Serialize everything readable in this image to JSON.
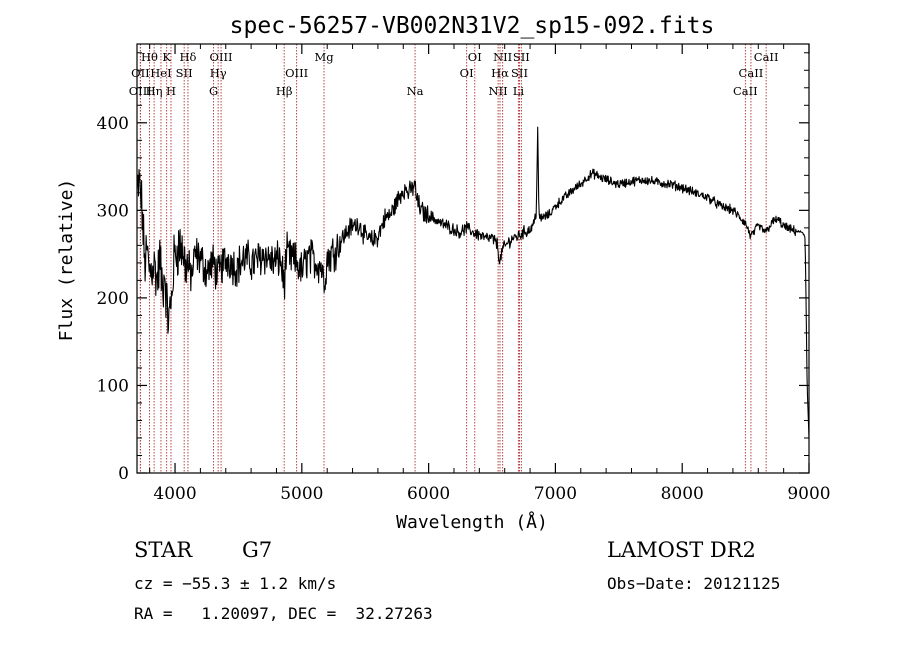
{
  "chart_data": {
    "type": "line",
    "title": "spec-56257-VB002N31V2_sp15-092.fits",
    "xlabel": "Wavelength (Å)",
    "ylabel": "Flux (relative)",
    "xlim": [
      3700,
      9000
    ],
    "ylim": [
      0,
      490
    ],
    "xticks": [
      4000,
      5000,
      6000,
      7000,
      8000,
      9000
    ],
    "yticks": [
      0,
      100,
      200,
      300,
      400
    ],
    "grid": false,
    "line_color": "#000000",
    "marker_color": "#b03030",
    "series": [
      {
        "x": [
          3700,
          3720,
          3740,
          3760,
          3780,
          3800,
          3830,
          3860,
          3880,
          3900,
          3920,
          3935,
          3950,
          3968,
          3990,
          4010,
          4050,
          4080,
          4100,
          4130,
          4160,
          4200,
          4250,
          4300,
          4340,
          4380,
          4420,
          4480,
          4550,
          4620,
          4700,
          4780,
          4830,
          4861,
          4880,
          4920,
          4960,
          5000,
          5050,
          5100,
          5150,
          5175,
          5200,
          5260,
          5320,
          5380,
          5450,
          5500,
          5550,
          5600,
          5650,
          5700,
          5750,
          5800,
          5850,
          5890,
          5910,
          5940,
          5980,
          6030,
          6100,
          6150,
          6200,
          6250,
          6300,
          6350,
          6400,
          6450,
          6500,
          6540,
          6563,
          6580,
          6620,
          6660,
          6700,
          6750,
          6800,
          6830,
          6850,
          6860,
          6870,
          6900,
          6950,
          7000,
          7050,
          7100,
          7150,
          7200,
          7250,
          7300,
          7350,
          7400,
          7450,
          7500,
          7600,
          7700,
          7800,
          7900,
          8000,
          8100,
          8200,
          8300,
          8400,
          8500,
          8542,
          8600,
          8662,
          8700,
          8750,
          8800,
          8850,
          8900,
          8950,
          8970,
          8985,
          9000
        ],
        "y": [
          320,
          330,
          300,
          240,
          250,
          230,
          240,
          220,
          245,
          210,
          230,
          190,
          175,
          190,
          240,
          255,
          260,
          240,
          235,
          225,
          250,
          245,
          230,
          240,
          225,
          240,
          245,
          235,
          245,
          240,
          250,
          240,
          245,
          215,
          250,
          245,
          240,
          230,
          248,
          242,
          238,
          220,
          245,
          255,
          268,
          280,
          285,
          270,
          265,
          270,
          290,
          295,
          310,
          325,
          320,
          330,
          310,
          300,
          295,
          292,
          285,
          282,
          278,
          275,
          280,
          275,
          272,
          268,
          268,
          262,
          240,
          255,
          262,
          268,
          270,
          275,
          278,
          285,
          300,
          395,
          290,
          292,
          295,
          305,
          312,
          318,
          325,
          330,
          338,
          342,
          338,
          335,
          332,
          330,
          333,
          335,
          332,
          330,
          326,
          320,
          315,
          305,
          300,
          285,
          270,
          282,
          275,
          285,
          290,
          282,
          278,
          276,
          275,
          268,
          100,
          40
        ]
      }
    ],
    "spectral_lines": [
      {
        "label": "Hθ",
        "wavelength": 3798,
        "row": 1
      },
      {
        "label": "K",
        "wavelength": 3934,
        "row": 1
      },
      {
        "label": "Hδ",
        "wavelength": 4102,
        "row": 1
      },
      {
        "label": "OIII",
        "wavelength": 4363,
        "row": 1
      },
      {
        "label": "Mg",
        "wavelength": 5175,
        "row": 1
      },
      {
        "label": "OI",
        "wavelength": 6364,
        "row": 1
      },
      {
        "label": "NII",
        "wavelength": 6584,
        "row": 1
      },
      {
        "label": "SII",
        "wavelength": 6731,
        "row": 1
      },
      {
        "label": "CaII",
        "wavelength": 8662,
        "row": 1
      },
      {
        "label": "OII",
        "wavelength": 3727,
        "row": 2
      },
      {
        "label": "HeI",
        "wavelength": 3889,
        "row": 2
      },
      {
        "label": "SII",
        "wavelength": 4072,
        "row": 2
      },
      {
        "label": "Hγ",
        "wavelength": 4340,
        "row": 2
      },
      {
        "label": "OIII",
        "wavelength": 4959,
        "row": 2
      },
      {
        "label": "OI",
        "wavelength": 6300,
        "row": 2
      },
      {
        "label": "Hα",
        "wavelength": 6563,
        "row": 2
      },
      {
        "label": "SII",
        "wavelength": 6717,
        "row": 2
      },
      {
        "label": "CaII",
        "wavelength": 8542,
        "row": 2
      },
      {
        "label": "OIII",
        "wavelength": 3726,
        "row": 3
      },
      {
        "label": "Hη",
        "wavelength": 3835,
        "row": 3
      },
      {
        "label": "H",
        "wavelength": 3968,
        "row": 3
      },
      {
        "label": "G",
        "wavelength": 4304,
        "row": 3
      },
      {
        "label": "Hβ",
        "wavelength": 4861,
        "row": 3
      },
      {
        "label": "Na",
        "wavelength": 5893,
        "row": 3
      },
      {
        "label": "NII",
        "wavelength": 6548,
        "row": 3
      },
      {
        "label": "Li",
        "wavelength": 6708,
        "row": 3
      },
      {
        "label": "CaII",
        "wavelength": 8498,
        "row": 3
      }
    ]
  },
  "info": {
    "object_class": "STAR",
    "subclass": "G7",
    "survey": "LAMOST DR2",
    "cz": "cz = −55.3 ± 1.2 km/s",
    "obs_date": "Obs−Date: 20121125",
    "coords": "RA =   1.20097, DEC =  32.27263"
  }
}
